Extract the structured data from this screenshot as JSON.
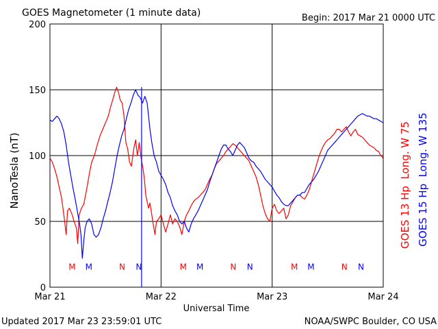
{
  "header": {
    "title": "GOES Magnetometer (1 minute data)",
    "begin": "Begin:  2017 Mar 21 0000 UTC"
  },
  "footer": {
    "updated": "Updated 2017 Mar 23 23:59:01 UTC",
    "source": "NOAA/SWPC Boulder, CO USA"
  },
  "colors": {
    "goes13": "#ff0000",
    "goes15": "#0000ff",
    "axis": "#000000",
    "background": "#ffffff"
  },
  "chart_data": {
    "type": "line",
    "ylabel": "NanoTesla (nT)",
    "xlabel": "Universal Time",
    "ylim": [
      0,
      200
    ],
    "xlim": [
      0,
      72
    ],
    "x_unit": "hours since 2017 Mar 21 0000 UTC",
    "y_ticks": [
      0,
      50,
      100,
      150,
      200
    ],
    "x_ticks": [
      {
        "x": 0,
        "label": "Mar 21"
      },
      {
        "x": 24,
        "label": "Mar 22"
      },
      {
        "x": 48,
        "label": "Mar 23"
      },
      {
        "x": 72,
        "label": "Mar 24"
      }
    ],
    "grid": true,
    "series": [
      {
        "name": "GOES 13 Hp  Long. W 75",
        "color": "#ff0000",
        "points": [
          [
            0,
            98
          ],
          [
            0.5,
            95
          ],
          [
            1,
            90
          ],
          [
            1.5,
            84
          ],
          [
            2,
            76
          ],
          [
            2.5,
            68
          ],
          [
            3,
            55
          ],
          [
            3.5,
            40
          ],
          [
            3.8,
            58
          ],
          [
            4.2,
            60
          ],
          [
            4.8,
            55
          ],
          [
            5.2,
            50
          ],
          [
            5.7,
            45
          ],
          [
            6,
            33
          ],
          [
            6.3,
            55
          ],
          [
            6.8,
            60
          ],
          [
            7.3,
            63
          ],
          [
            7.8,
            72
          ],
          [
            8.2,
            80
          ],
          [
            8.6,
            88
          ],
          [
            9,
            95
          ],
          [
            9.6,
            100
          ],
          [
            10.2,
            108
          ],
          [
            10.8,
            115
          ],
          [
            11.4,
            120
          ],
          [
            12,
            125
          ],
          [
            12.6,
            130
          ],
          [
            13.1,
            137
          ],
          [
            13.6,
            143
          ],
          [
            14,
            148
          ],
          [
            14.4,
            152
          ],
          [
            14.8,
            148
          ],
          [
            15.2,
            142
          ],
          [
            15.6,
            140
          ],
          [
            16,
            130
          ],
          [
            16.4,
            110
          ],
          [
            16.8,
            105
          ],
          [
            17.2,
            95
          ],
          [
            17.6,
            92
          ],
          [
            18.1,
            105
          ],
          [
            18.5,
            112
          ],
          [
            18.9,
            100
          ],
          [
            19.3,
            110
          ],
          [
            19.7,
            98
          ],
          [
            20.1,
            90
          ],
          [
            20.4,
            82
          ],
          [
            20.7,
            70
          ],
          [
            21,
            65
          ],
          [
            21.3,
            60
          ],
          [
            21.6,
            64
          ],
          [
            22,
            55
          ],
          [
            22.3,
            48
          ],
          [
            22.7,
            40
          ],
          [
            23,
            50
          ],
          [
            23.5,
            52
          ],
          [
            24,
            55
          ],
          [
            24.5,
            48
          ],
          [
            25,
            42
          ],
          [
            25.5,
            48
          ],
          [
            26,
            55
          ],
          [
            26.5,
            48
          ],
          [
            27,
            52
          ],
          [
            27.5,
            50
          ],
          [
            28,
            46
          ],
          [
            28.5,
            40
          ],
          [
            29,
            50
          ],
          [
            29.5,
            55
          ],
          [
            30,
            58
          ],
          [
            30.5,
            62
          ],
          [
            31,
            65
          ],
          [
            31.5,
            67
          ],
          [
            32,
            68
          ],
          [
            32.5,
            70
          ],
          [
            33,
            72
          ],
          [
            33.5,
            74
          ],
          [
            34,
            78
          ],
          [
            34.5,
            82
          ],
          [
            35,
            85
          ],
          [
            35.5,
            90
          ],
          [
            36,
            94
          ],
          [
            36.5,
            96
          ],
          [
            37,
            98
          ],
          [
            37.5,
            100
          ],
          [
            38,
            103
          ],
          [
            38.5,
            105
          ],
          [
            39,
            107
          ],
          [
            39.5,
            109
          ],
          [
            40,
            108
          ],
          [
            40.5,
            106
          ],
          [
            41,
            104
          ],
          [
            41.5,
            102
          ],
          [
            42,
            100
          ],
          [
            42.5,
            98
          ],
          [
            43,
            96
          ],
          [
            43.5,
            92
          ],
          [
            44,
            88
          ],
          [
            44.5,
            84
          ],
          [
            45,
            78
          ],
          [
            45.5,
            70
          ],
          [
            46,
            62
          ],
          [
            46.5,
            56
          ],
          [
            47,
            52
          ],
          [
            47.5,
            50
          ],
          [
            48,
            60
          ],
          [
            48.5,
            63
          ],
          [
            49,
            58
          ],
          [
            49.5,
            56
          ],
          [
            50,
            58
          ],
          [
            50.5,
            60
          ],
          [
            51,
            52
          ],
          [
            51.5,
            55
          ],
          [
            52,
            62
          ],
          [
            52.5,
            65
          ],
          [
            53,
            68
          ],
          [
            53.5,
            70
          ],
          [
            54,
            70
          ],
          [
            54.5,
            68
          ],
          [
            55,
            67
          ],
          [
            55.5,
            70
          ],
          [
            56,
            74
          ],
          [
            56.5,
            80
          ],
          [
            57,
            86
          ],
          [
            57.5,
            92
          ],
          [
            58,
            98
          ],
          [
            58.5,
            103
          ],
          [
            59,
            107
          ],
          [
            59.5,
            110
          ],
          [
            60,
            112
          ],
          [
            60.5,
            113
          ],
          [
            61,
            115
          ],
          [
            61.5,
            117
          ],
          [
            62,
            120
          ],
          [
            62.5,
            120
          ],
          [
            63,
            118
          ],
          [
            63.5,
            120
          ],
          [
            64,
            122
          ],
          [
            64.5,
            118
          ],
          [
            65,
            115
          ],
          [
            65.5,
            118
          ],
          [
            66,
            120
          ],
          [
            66.5,
            116
          ],
          [
            67,
            115
          ],
          [
            67.5,
            114
          ],
          [
            68,
            112
          ],
          [
            68.5,
            110
          ],
          [
            69,
            108
          ],
          [
            69.5,
            107
          ],
          [
            70,
            106
          ],
          [
            70.5,
            104
          ],
          [
            71,
            103
          ],
          [
            71.5,
            100
          ],
          [
            72,
            98
          ]
        ]
      },
      {
        "name": "GOES 15 Hp  Long. W 135",
        "color": "#0000ff",
        "points": [
          [
            0,
            127
          ],
          [
            0.5,
            126
          ],
          [
            1,
            128
          ],
          [
            1.5,
            130
          ],
          [
            2,
            128
          ],
          [
            2.5,
            124
          ],
          [
            3,
            118
          ],
          [
            3.5,
            108
          ],
          [
            4,
            95
          ],
          [
            4.5,
            85
          ],
          [
            5,
            75
          ],
          [
            5.5,
            66
          ],
          [
            6,
            56
          ],
          [
            6.4,
            48
          ],
          [
            6.7,
            40
          ],
          [
            7,
            22
          ],
          [
            7.3,
            35
          ],
          [
            7.6,
            45
          ],
          [
            8,
            50
          ],
          [
            8.5,
            52
          ],
          [
            9,
            48
          ],
          [
            9.5,
            40
          ],
          [
            10,
            38
          ],
          [
            10.5,
            40
          ],
          [
            11,
            45
          ],
          [
            11.5,
            52
          ],
          [
            12,
            58
          ],
          [
            12.5,
            65
          ],
          [
            13,
            72
          ],
          [
            13.5,
            80
          ],
          [
            14,
            90
          ],
          [
            14.5,
            100
          ],
          [
            15,
            108
          ],
          [
            15.5,
            115
          ],
          [
            16,
            120
          ],
          [
            16.5,
            128
          ],
          [
            17,
            135
          ],
          [
            17.5,
            140
          ],
          [
            18,
            146
          ],
          [
            18.5,
            150
          ],
          [
            19,
            146
          ],
          [
            19.5,
            144
          ],
          [
            20,
            140
          ],
          [
            20.5,
            145
          ],
          [
            21,
            140
          ],
          [
            21.3,
            130
          ],
          [
            21.6,
            120
          ],
          [
            22,
            110
          ],
          [
            22.5,
            100
          ],
          [
            23,
            95
          ],
          [
            23.5,
            88
          ],
          [
            24,
            85
          ],
          [
            24.5,
            82
          ],
          [
            25,
            78
          ],
          [
            25.5,
            72
          ],
          [
            26,
            68
          ],
          [
            26.5,
            62
          ],
          [
            27,
            58
          ],
          [
            27.5,
            55
          ],
          [
            28,
            50
          ],
          [
            28.5,
            48
          ],
          [
            29,
            50
          ],
          [
            29.5,
            45
          ],
          [
            30,
            42
          ],
          [
            30.5,
            48
          ],
          [
            31,
            52
          ],
          [
            31.5,
            55
          ],
          [
            32,
            58
          ],
          [
            32.5,
            62
          ],
          [
            33,
            66
          ],
          [
            33.5,
            70
          ],
          [
            34,
            74
          ],
          [
            34.5,
            80
          ],
          [
            35,
            85
          ],
          [
            35.5,
            90
          ],
          [
            36,
            95
          ],
          [
            36.5,
            100
          ],
          [
            37,
            105
          ],
          [
            37.5,
            108
          ],
          [
            38,
            108
          ],
          [
            38.5,
            105
          ],
          [
            39,
            103
          ],
          [
            39.5,
            100
          ],
          [
            40,
            104
          ],
          [
            40.5,
            108
          ],
          [
            41,
            110
          ],
          [
            41.5,
            108
          ],
          [
            42,
            106
          ],
          [
            42.5,
            102
          ],
          [
            43,
            98
          ],
          [
            43.5,
            96
          ],
          [
            44,
            95
          ],
          [
            44.5,
            92
          ],
          [
            45,
            90
          ],
          [
            45.5,
            88
          ],
          [
            46,
            85
          ],
          [
            46.5,
            82
          ],
          [
            47,
            80
          ],
          [
            47.5,
            78
          ],
          [
            48,
            76
          ],
          [
            48.5,
            73
          ],
          [
            49,
            70
          ],
          [
            49.5,
            68
          ],
          [
            50,
            65
          ],
          [
            50.5,
            63
          ],
          [
            51,
            62
          ],
          [
            51.5,
            62
          ],
          [
            52,
            64
          ],
          [
            52.5,
            66
          ],
          [
            53,
            68
          ],
          [
            53.5,
            70
          ],
          [
            54,
            70
          ],
          [
            54.5,
            72
          ],
          [
            55,
            72
          ],
          [
            55.5,
            75
          ],
          [
            56,
            78
          ],
          [
            56.5,
            80
          ],
          [
            57,
            82
          ],
          [
            57.5,
            85
          ],
          [
            58,
            88
          ],
          [
            58.5,
            92
          ],
          [
            59,
            96
          ],
          [
            59.5,
            100
          ],
          [
            60,
            104
          ],
          [
            60.5,
            106
          ],
          [
            61,
            108
          ],
          [
            61.5,
            110
          ],
          [
            62,
            112
          ],
          [
            62.5,
            114
          ],
          [
            63,
            116
          ],
          [
            63.5,
            118
          ],
          [
            64,
            120
          ],
          [
            64.5,
            122
          ],
          [
            65,
            124
          ],
          [
            65.5,
            126
          ],
          [
            66,
            128
          ],
          [
            66.5,
            130
          ],
          [
            67,
            131
          ],
          [
            67.5,
            132
          ],
          [
            68,
            131
          ],
          [
            68.5,
            130
          ],
          [
            69,
            130
          ],
          [
            69.5,
            129
          ],
          [
            70,
            128
          ],
          [
            70.5,
            128
          ],
          [
            71,
            127
          ],
          [
            71.5,
            126
          ],
          [
            72,
            125
          ]
        ]
      }
    ],
    "event_markers": [
      {
        "x": 4.8,
        "label": "M",
        "series": 0
      },
      {
        "x": 8.4,
        "label": "M",
        "series": 1
      },
      {
        "x": 15.6,
        "label": "N",
        "series": 0
      },
      {
        "x": 19.2,
        "label": "N",
        "series": 1
      },
      {
        "x": 28.8,
        "label": "M",
        "series": 0
      },
      {
        "x": 32.4,
        "label": "M",
        "series": 1
      },
      {
        "x": 39.6,
        "label": "N",
        "series": 0
      },
      {
        "x": 43.2,
        "label": "N",
        "series": 1
      },
      {
        "x": 52.8,
        "label": "M",
        "series": 0
      },
      {
        "x": 56.4,
        "label": "M",
        "series": 1
      },
      {
        "x": 63.6,
        "label": "N",
        "series": 0
      },
      {
        "x": 67.2,
        "label": "N",
        "series": 1
      }
    ],
    "marker_level": 16,
    "spikes": [
      {
        "x": 19.8,
        "y_min": 0,
        "y_max": 152,
        "series": 1
      }
    ]
  }
}
